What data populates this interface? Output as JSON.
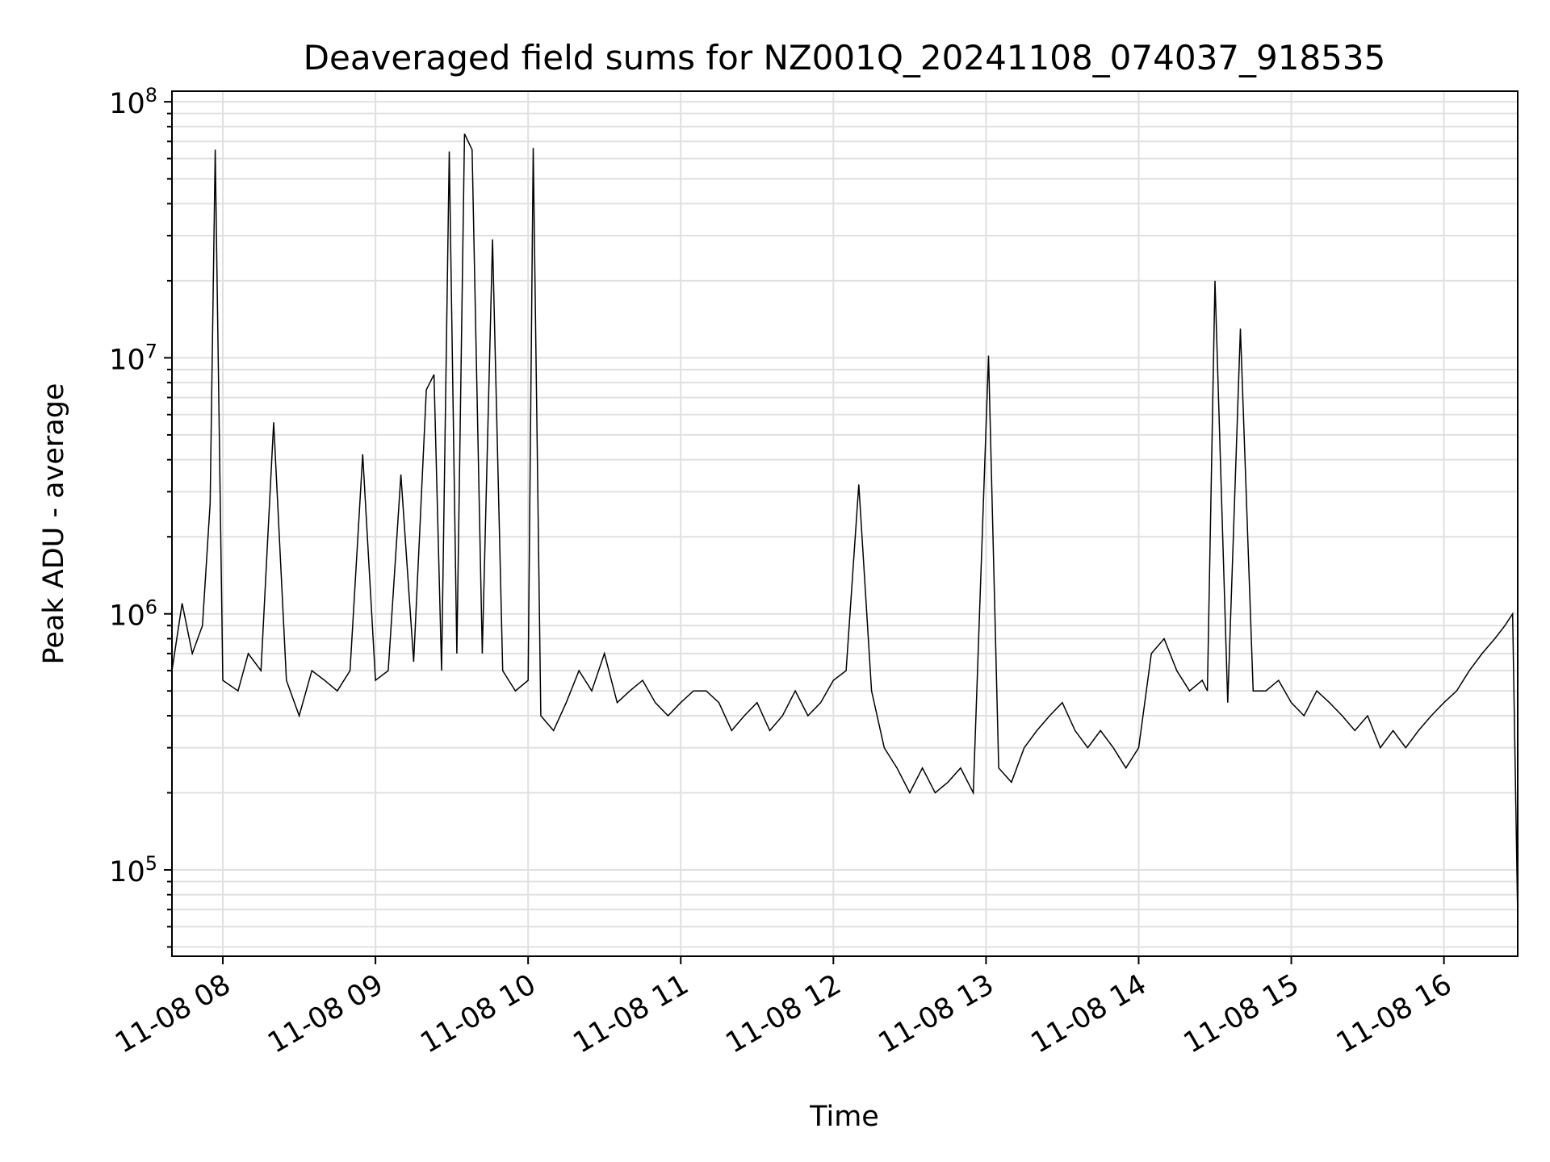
{
  "chart_data": {
    "type": "line",
    "title": "Deaveraged field sums for NZ001Q_20241108_074037_918535",
    "xlabel": "Time",
    "ylabel": "Peak ADU - average",
    "yscale": "log",
    "ylim": [
      46000,
      110000000
    ],
    "xlim": [
      "2024-11-08 07:40",
      "2024-11-08 16:29"
    ],
    "grid": true,
    "line_color": "#000000",
    "x_ticks": [
      {
        "label": "11-08 08",
        "time": "2024-11-08 08:00"
      },
      {
        "label": "11-08 09",
        "time": "2024-11-08 09:00"
      },
      {
        "label": "11-08 10",
        "time": "2024-11-08 10:00"
      },
      {
        "label": "11-08 11",
        "time": "2024-11-08 11:00"
      },
      {
        "label": "11-08 12",
        "time": "2024-11-08 12:00"
      },
      {
        "label": "11-08 13",
        "time": "2024-11-08 13:00"
      },
      {
        "label": "11-08 14",
        "time": "2024-11-08 14:00"
      },
      {
        "label": "11-08 15",
        "time": "2024-11-08 15:00"
      },
      {
        "label": "11-08 16",
        "time": "2024-11-08 16:00"
      }
    ],
    "y_ticks": [
      {
        "base": "10",
        "exp": "5",
        "value": 100000
      },
      {
        "base": "10",
        "exp": "6",
        "value": 1000000
      },
      {
        "base": "10",
        "exp": "7",
        "value": 10000000
      },
      {
        "base": "10",
        "exp": "8",
        "value": 100000000
      }
    ],
    "series": [
      {
        "x": [
          "2024-11-08 07:40",
          "2024-11-08 07:44",
          "2024-11-08 07:48",
          "2024-11-08 07:52",
          "2024-11-08 07:55",
          "2024-11-08 07:57",
          "2024-11-08 08:00",
          "2024-11-08 08:06",
          "2024-11-08 08:10",
          "2024-11-08 08:15",
          "2024-11-08 08:20",
          "2024-11-08 08:25",
          "2024-11-08 08:30",
          "2024-11-08 08:35",
          "2024-11-08 08:40",
          "2024-11-08 08:45",
          "2024-11-08 08:50",
          "2024-11-08 08:55",
          "2024-11-08 09:00",
          "2024-11-08 09:05",
          "2024-11-08 09:10",
          "2024-11-08 09:15",
          "2024-11-08 09:20",
          "2024-11-08 09:23",
          "2024-11-08 09:26",
          "2024-11-08 09:29",
          "2024-11-08 09:32",
          "2024-11-08 09:35",
          "2024-11-08 09:38",
          "2024-11-08 09:42",
          "2024-11-08 09:46",
          "2024-11-08 09:50",
          "2024-11-08 09:55",
          "2024-11-08 10:00",
          "2024-11-08 10:02",
          "2024-11-08 10:05",
          "2024-11-08 10:10",
          "2024-11-08 10:15",
          "2024-11-08 10:20",
          "2024-11-08 10:25",
          "2024-11-08 10:30",
          "2024-11-08 10:35",
          "2024-11-08 10:40",
          "2024-11-08 10:45",
          "2024-11-08 10:50",
          "2024-11-08 10:55",
          "2024-11-08 11:00",
          "2024-11-08 11:05",
          "2024-11-08 11:10",
          "2024-11-08 11:15",
          "2024-11-08 11:20",
          "2024-11-08 11:25",
          "2024-11-08 11:30",
          "2024-11-08 11:35",
          "2024-11-08 11:40",
          "2024-11-08 11:45",
          "2024-11-08 11:50",
          "2024-11-08 11:55",
          "2024-11-08 12:00",
          "2024-11-08 12:05",
          "2024-11-08 12:10",
          "2024-11-08 12:15",
          "2024-11-08 12:20",
          "2024-11-08 12:25",
          "2024-11-08 12:30",
          "2024-11-08 12:35",
          "2024-11-08 12:40",
          "2024-11-08 12:45",
          "2024-11-08 12:50",
          "2024-11-08 12:55",
          "2024-11-08 13:01",
          "2024-11-08 13:05",
          "2024-11-08 13:10",
          "2024-11-08 13:15",
          "2024-11-08 13:20",
          "2024-11-08 13:25",
          "2024-11-08 13:30",
          "2024-11-08 13:35",
          "2024-11-08 13:40",
          "2024-11-08 13:45",
          "2024-11-08 13:50",
          "2024-11-08 13:55",
          "2024-11-08 14:00",
          "2024-11-08 14:05",
          "2024-11-08 14:10",
          "2024-11-08 14:15",
          "2024-11-08 14:20",
          "2024-11-08 14:25",
          "2024-11-08 14:27",
          "2024-11-08 14:30",
          "2024-11-08 14:35",
          "2024-11-08 14:40",
          "2024-11-08 14:45",
          "2024-11-08 14:50",
          "2024-11-08 14:55",
          "2024-11-08 15:00",
          "2024-11-08 15:05",
          "2024-11-08 15:10",
          "2024-11-08 15:15",
          "2024-11-08 15:20",
          "2024-11-08 15:25",
          "2024-11-08 15:30",
          "2024-11-08 15:35",
          "2024-11-08 15:40",
          "2024-11-08 15:45",
          "2024-11-08 15:50",
          "2024-11-08 15:55",
          "2024-11-08 16:00",
          "2024-11-08 16:05",
          "2024-11-08 16:10",
          "2024-11-08 16:15",
          "2024-11-08 16:20",
          "2024-11-08 16:24",
          "2024-11-08 16:27",
          "2024-11-08 16:29"
        ],
        "y": [
          600000,
          1100000,
          700000,
          900000,
          2700000,
          65000000,
          550000,
          500000,
          700000,
          600000,
          5600000,
          550000,
          400000,
          600000,
          550000,
          500000,
          600000,
          4200000,
          550000,
          600000,
          3500000,
          650000,
          7500000,
          8600000,
          600000,
          64000000,
          700000,
          75000000,
          65000000,
          700000,
          29000000,
          600000,
          500000,
          550000,
          66000000,
          400000,
          350000,
          450000,
          600000,
          500000,
          700000,
          450000,
          500000,
          550000,
          450000,
          400000,
          450000,
          500000,
          500000,
          450000,
          350000,
          400000,
          450000,
          350000,
          400000,
          500000,
          400000,
          450000,
          550000,
          600000,
          3200000,
          500000,
          300000,
          250000,
          200000,
          250000,
          200000,
          220000,
          250000,
          200000,
          10200000,
          250000,
          220000,
          300000,
          350000,
          400000,
          450000,
          350000,
          300000,
          350000,
          300000,
          250000,
          300000,
          700000,
          800000,
          600000,
          500000,
          550000,
          500000,
          20000000,
          450000,
          13000000,
          500000,
          500000,
          550000,
          450000,
          400000,
          500000,
          450000,
          400000,
          350000,
          400000,
          300000,
          350000,
          300000,
          350000,
          400000,
          450000,
          500000,
          600000,
          700000,
          800000,
          900000,
          1000000,
          65000
        ]
      }
    ]
  }
}
